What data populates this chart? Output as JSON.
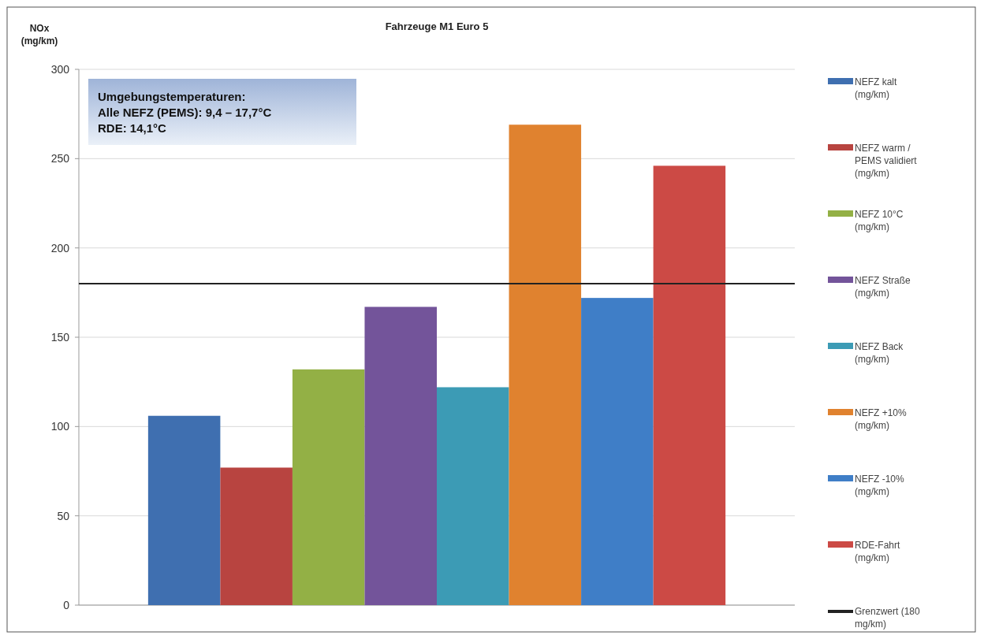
{
  "chart_data": {
    "type": "bar",
    "title": "Fahrzeuge M1 Euro 5",
    "ylabel": "NOx (mg/km)",
    "categories": [
      null
    ],
    "series": [
      {
        "name": "NEFZ kalt (mg/km)",
        "color": "#3f6fb0",
        "values": [
          106
        ]
      },
      {
        "name": "NEFZ warm / PEMS validiert (mg/km)",
        "color": "#b84440",
        "values": [
          77
        ]
      },
      {
        "name": "NEFZ 10°C (mg/km)",
        "color": "#93b045",
        "values": [
          132
        ]
      },
      {
        "name": "NEFZ Straße (mg/km)",
        "color": "#73549a",
        "values": [
          167
        ]
      },
      {
        "name": "NEFZ Back (mg/km)",
        "color": "#3c9bb5",
        "values": [
          122
        ]
      },
      {
        "name": "NEFZ +10% (mg/km)",
        "color": "#e0822f",
        "values": [
          269
        ]
      },
      {
        "name": "NEFZ -10% (mg/km)",
        "color": "#3f7ec7",
        "values": [
          172
        ]
      },
      {
        "name": "RDE-Fahrt (mg/km)",
        "color": "#cc4a45",
        "values": [
          246
        ]
      }
    ],
    "ref_lines": [
      {
        "axis": "y",
        "value": 180,
        "label": "Grenzwert (180 mg/km)",
        "color": "#222222",
        "line_style": "solid"
      }
    ],
    "annotations": [
      "Umgebungstemperaturen:",
      "Alle NEFZ (PEMS): 9,4 – 17,7°C",
      "RDE: 14,1°C"
    ],
    "ylim": [
      0,
      300
    ],
    "yticks": [
      0,
      50,
      100,
      150,
      200,
      250,
      300
    ],
    "grid": "y",
    "legend": "right"
  }
}
